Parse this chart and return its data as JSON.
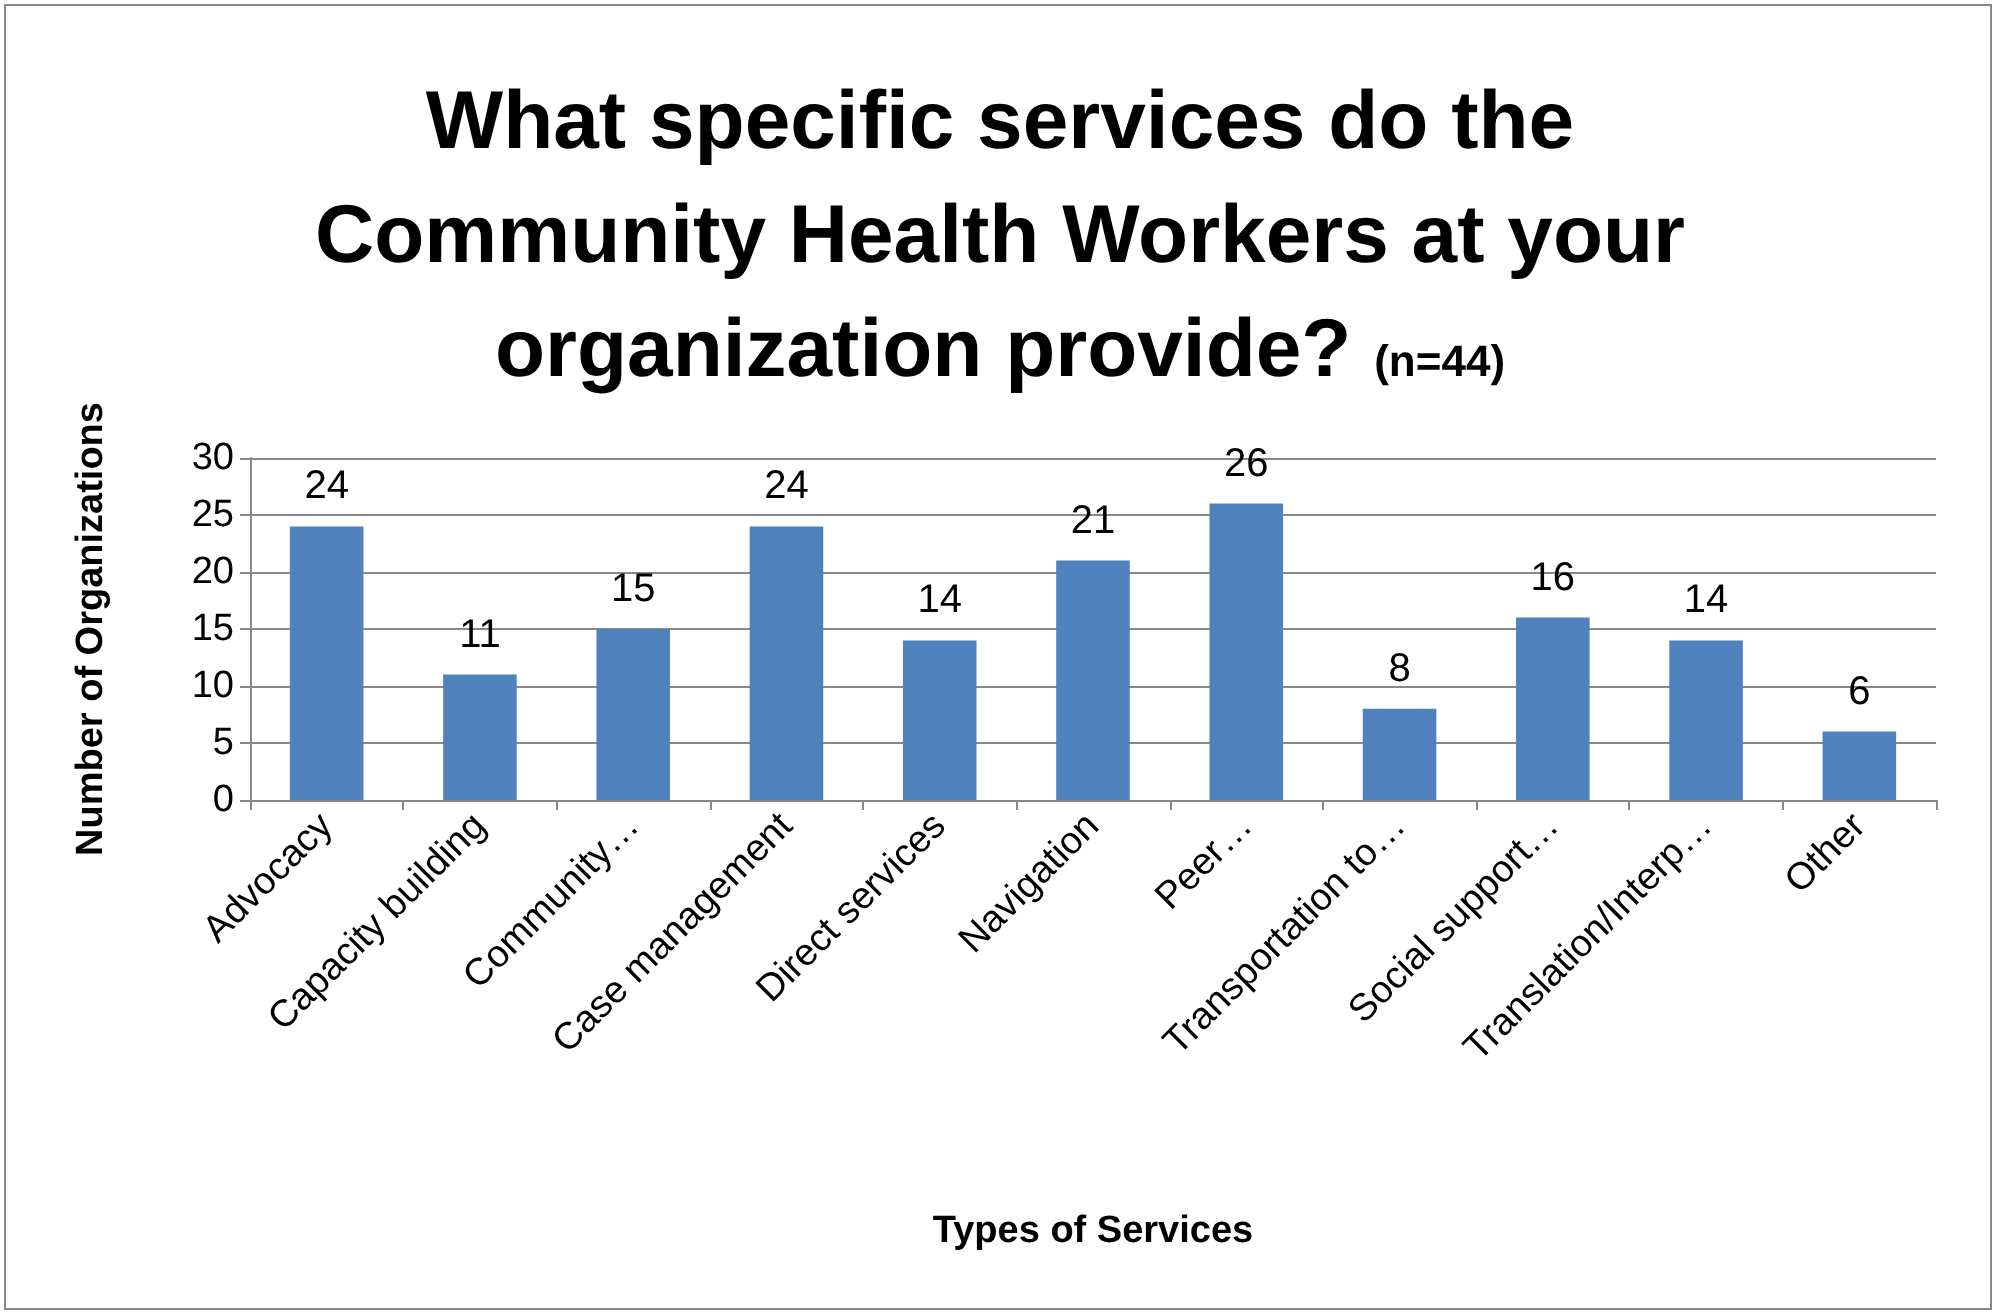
{
  "chart_data": {
    "type": "bar",
    "title": "What specific services do the Community Health Workers at your organization provide?",
    "subtitle": "(n=44)",
    "xlabel": "Types of Services",
    "ylabel": "Number of Organizations",
    "categories": [
      "Advocacy",
      "Capacity building",
      "Community…",
      "Case management",
      "Direct services",
      "Navigation",
      "Peer…",
      "Transportation to…",
      "Social support…",
      "Translation/Interp…",
      "Other"
    ],
    "values": [
      24,
      11,
      15,
      24,
      14,
      21,
      26,
      8,
      16,
      14,
      6
    ],
    "color": "#4f81bd",
    "ylim": [
      0,
      30
    ],
    "yticks": [
      0,
      5,
      10,
      15,
      20,
      25,
      30
    ],
    "grid": "y",
    "data_labels": true
  }
}
